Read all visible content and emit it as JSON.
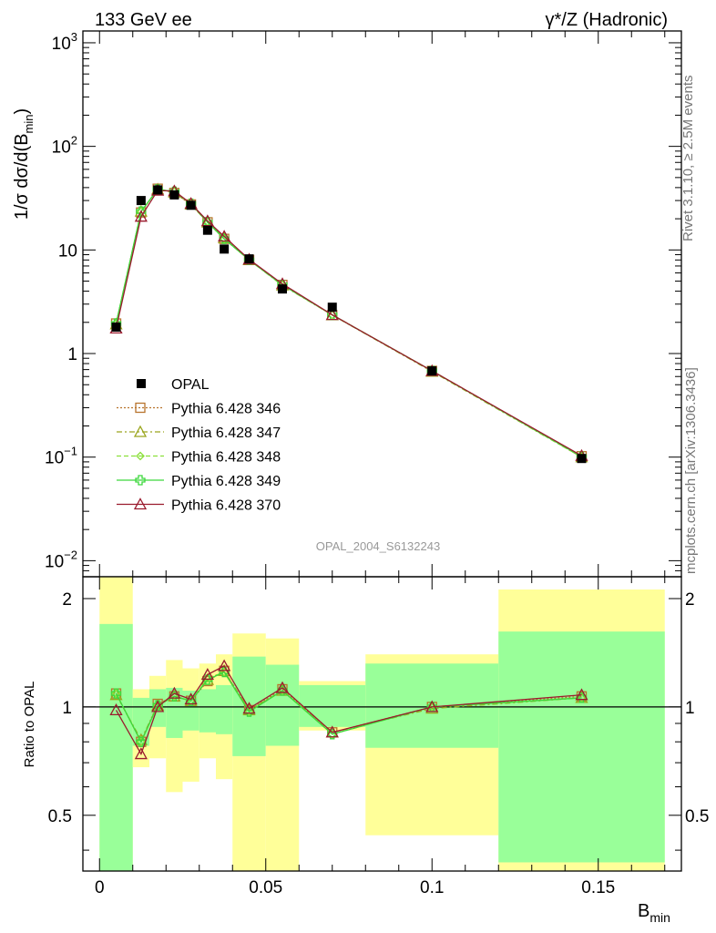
{
  "header": {
    "left_title": "133 GeV ee",
    "right_title": "γ*/Z (Hadronic)"
  },
  "side_labels": {
    "rivet": "Rivet 3.1.10, ≥ 2.5M events",
    "mcplots": "mcplots.cern.ch [arXiv:1306.3436]"
  },
  "watermark": "OPAL_2004_S6132243",
  "colors": {
    "data": "#000000",
    "yellow_band": "#ffff99",
    "green_band": "#99ff99"
  },
  "chart_data": [
    {
      "type": "line",
      "panel": "main",
      "ylabel": "1/σ dσ/d(B_min)",
      "yscale": "log",
      "ylim": [
        0.007,
        1300
      ],
      "xlim": [
        -0.005,
        0.175
      ],
      "yticks": [
        {
          "value": 0.01,
          "base": "10",
          "exp": "−2"
        },
        {
          "value": 0.1,
          "base": "10",
          "exp": "−1"
        },
        {
          "value": 1,
          "label": "1"
        },
        {
          "value": 10,
          "label": "10"
        },
        {
          "value": 100,
          "base": "10",
          "exp": "2"
        },
        {
          "value": 1000,
          "base": "10",
          "exp": "3"
        }
      ],
      "legend_position": "center-left",
      "data_series": {
        "name": "OPAL",
        "x": [
          0.005,
          0.0125,
          0.0175,
          0.0225,
          0.0275,
          0.0325,
          0.0375,
          0.045,
          0.055,
          0.07,
          0.1,
          0.145
        ],
        "y": [
          1.8,
          30,
          38,
          34,
          27,
          15.5,
          10.2,
          8.2,
          4.2,
          2.8,
          0.68,
          0.097
        ]
      },
      "series": [
        {
          "name": "Pythia 6.428 346",
          "color": "#b8742d",
          "dash": "2,2",
          "marker": "open-square",
          "x": [
            0.005,
            0.0125,
            0.0175,
            0.0225,
            0.0275,
            0.0325,
            0.0375,
            0.045,
            0.055,
            0.07,
            0.1,
            0.145
          ],
          "y": [
            1.95,
            23,
            39,
            35.5,
            27.5,
            18.5,
            12.8,
            8.0,
            4.6,
            2.35,
            0.68,
            0.102
          ]
        },
        {
          "name": "Pythia 6.428 347",
          "color": "#9aa51d",
          "dash": "6,3,2,3",
          "marker": "open-triangle",
          "x": [
            0.005,
            0.0125,
            0.0175,
            0.0225,
            0.0275,
            0.0325,
            0.0375,
            0.045,
            0.055,
            0.07,
            0.1,
            0.145
          ],
          "y": [
            1.92,
            23.5,
            38.5,
            36,
            27.5,
            18.5,
            13.0,
            8.0,
            4.55,
            2.35,
            0.67,
            0.1
          ]
        },
        {
          "name": "Pythia 6.428 348",
          "color": "#8be03a",
          "dash": "5,3",
          "marker": "open-diamond",
          "x": [
            0.005,
            0.0125,
            0.0175,
            0.0225,
            0.0275,
            0.0325,
            0.0375,
            0.045,
            0.055,
            0.07,
            0.1,
            0.145
          ],
          "y": [
            1.95,
            23.5,
            38.5,
            36.5,
            28,
            18.7,
            12.8,
            8.0,
            4.6,
            2.36,
            0.68,
            0.1
          ]
        },
        {
          "name": "Pythia 6.428 349",
          "color": "#3cd83c",
          "dash": "",
          "marker": "open-cross",
          "x": [
            0.005,
            0.0125,
            0.0175,
            0.0225,
            0.0275,
            0.0325,
            0.0375,
            0.045,
            0.055,
            0.07,
            0.1,
            0.145
          ],
          "y": [
            1.95,
            23.5,
            38.5,
            36.5,
            28,
            18.5,
            12.8,
            8.0,
            4.6,
            2.36,
            0.68,
            0.101
          ]
        },
        {
          "name": "Pythia 6.428 370",
          "color": "#9a1b2e",
          "dash": "",
          "marker": "open-triangle",
          "x": [
            0.005,
            0.0125,
            0.0175,
            0.0225,
            0.0275,
            0.0325,
            0.0375,
            0.045,
            0.055,
            0.07,
            0.1,
            0.145
          ],
          "y": [
            1.75,
            21,
            37.5,
            37,
            28,
            19,
            13.5,
            8.1,
            4.7,
            2.36,
            0.68,
            0.103
          ]
        }
      ]
    },
    {
      "type": "line",
      "panel": "ratio",
      "ylabel": "Ratio to OPAL",
      "xlabel": "B_min",
      "yscale": "log",
      "ylim": [
        0.35,
        2.3
      ],
      "xlim": [
        -0.005,
        0.175
      ],
      "yticks": [
        {
          "value": 0.5,
          "label": "0.5"
        },
        {
          "value": 1,
          "label": "1"
        },
        {
          "value": 2,
          "label": "2"
        }
      ],
      "xticks": [
        {
          "value": 0,
          "label": "0"
        },
        {
          "value": 0.05,
          "label": "0.05"
        },
        {
          "value": 0.1,
          "label": "0.1"
        },
        {
          "value": 0.15,
          "label": "0.15"
        }
      ],
      "reference_line": 1,
      "bins": {
        "edges": [
          0,
          0.01,
          0.015,
          0.02,
          0.025,
          0.03,
          0.035,
          0.04,
          0.05,
          0.06,
          0.08,
          0.12,
          0.17
        ],
        "yellow_lo": [
          0.3,
          0.68,
          0.72,
          0.58,
          0.62,
          0.72,
          0.63,
          0.3,
          0.3,
          0.86,
          0.44,
          0.3
        ],
        "yellow_hi": [
          2.3,
          1.12,
          1.22,
          1.35,
          1.28,
          1.32,
          1.4,
          1.6,
          1.55,
          1.18,
          1.4,
          2.12
        ],
        "green_lo": [
          0.3,
          0.78,
          0.88,
          0.82,
          0.86,
          0.85,
          0.84,
          0.73,
          0.78,
          0.88,
          0.77,
          0.37
        ],
        "green_hi": [
          1.7,
          1.06,
          1.12,
          1.13,
          1.11,
          1.12,
          1.15,
          1.38,
          1.31,
          1.15,
          1.32,
          1.62
        ]
      },
      "series": [
        {
          "name": "Pythia 6.428 346",
          "color": "#b8742d",
          "dash": "2,2",
          "marker": "open-square",
          "x": [
            0.005,
            0.0125,
            0.0175,
            0.0225,
            0.0275,
            0.0325,
            0.0375,
            0.045,
            0.055,
            0.07,
            0.1,
            0.145
          ],
          "y": [
            1.09,
            0.8,
            1.02,
            1.07,
            1.04,
            1.18,
            1.26,
            0.98,
            1.12,
            0.85,
            1.0,
            1.07
          ]
        },
        {
          "name": "Pythia 6.428 347",
          "color": "#9aa51d",
          "dash": "6,3,2,3",
          "marker": "open-triangle",
          "x": [
            0.005,
            0.0125,
            0.0175,
            0.0225,
            0.0275,
            0.0325,
            0.0375,
            0.045,
            0.055,
            0.07,
            0.1,
            0.145
          ],
          "y": [
            1.08,
            0.81,
            1.01,
            1.07,
            1.04,
            1.19,
            1.26,
            0.98,
            1.11,
            0.85,
            0.99,
            1.06
          ]
        },
        {
          "name": "Pythia 6.428 348",
          "color": "#8be03a",
          "dash": "5,3",
          "marker": "open-diamond",
          "x": [
            0.005,
            0.0125,
            0.0175,
            0.0225,
            0.0275,
            0.0325,
            0.0375,
            0.045,
            0.055,
            0.07,
            0.1,
            0.145
          ],
          "y": [
            1.09,
            0.8,
            1.01,
            1.07,
            1.04,
            1.2,
            1.25,
            0.97,
            1.11,
            0.84,
            1.0,
            1.06
          ]
        },
        {
          "name": "Pythia 6.428 349",
          "color": "#3cd83c",
          "dash": "",
          "marker": "open-cross",
          "x": [
            0.005,
            0.0125,
            0.0175,
            0.0225,
            0.0275,
            0.0325,
            0.0375,
            0.045,
            0.055,
            0.07,
            0.1,
            0.145
          ],
          "y": [
            1.09,
            0.8,
            1.01,
            1.07,
            1.04,
            1.19,
            1.25,
            0.97,
            1.11,
            0.84,
            1.0,
            1.06
          ]
        },
        {
          "name": "Pythia 6.428 370",
          "color": "#9a1b2e",
          "dash": "",
          "marker": "open-triangle",
          "x": [
            0.005,
            0.0125,
            0.0175,
            0.0225,
            0.0275,
            0.0325,
            0.0375,
            0.045,
            0.055,
            0.07,
            0.1,
            0.145
          ],
          "y": [
            0.98,
            0.74,
            1.0,
            1.09,
            1.05,
            1.23,
            1.3,
            0.99,
            1.13,
            0.85,
            1.0,
            1.08
          ]
        }
      ]
    }
  ]
}
